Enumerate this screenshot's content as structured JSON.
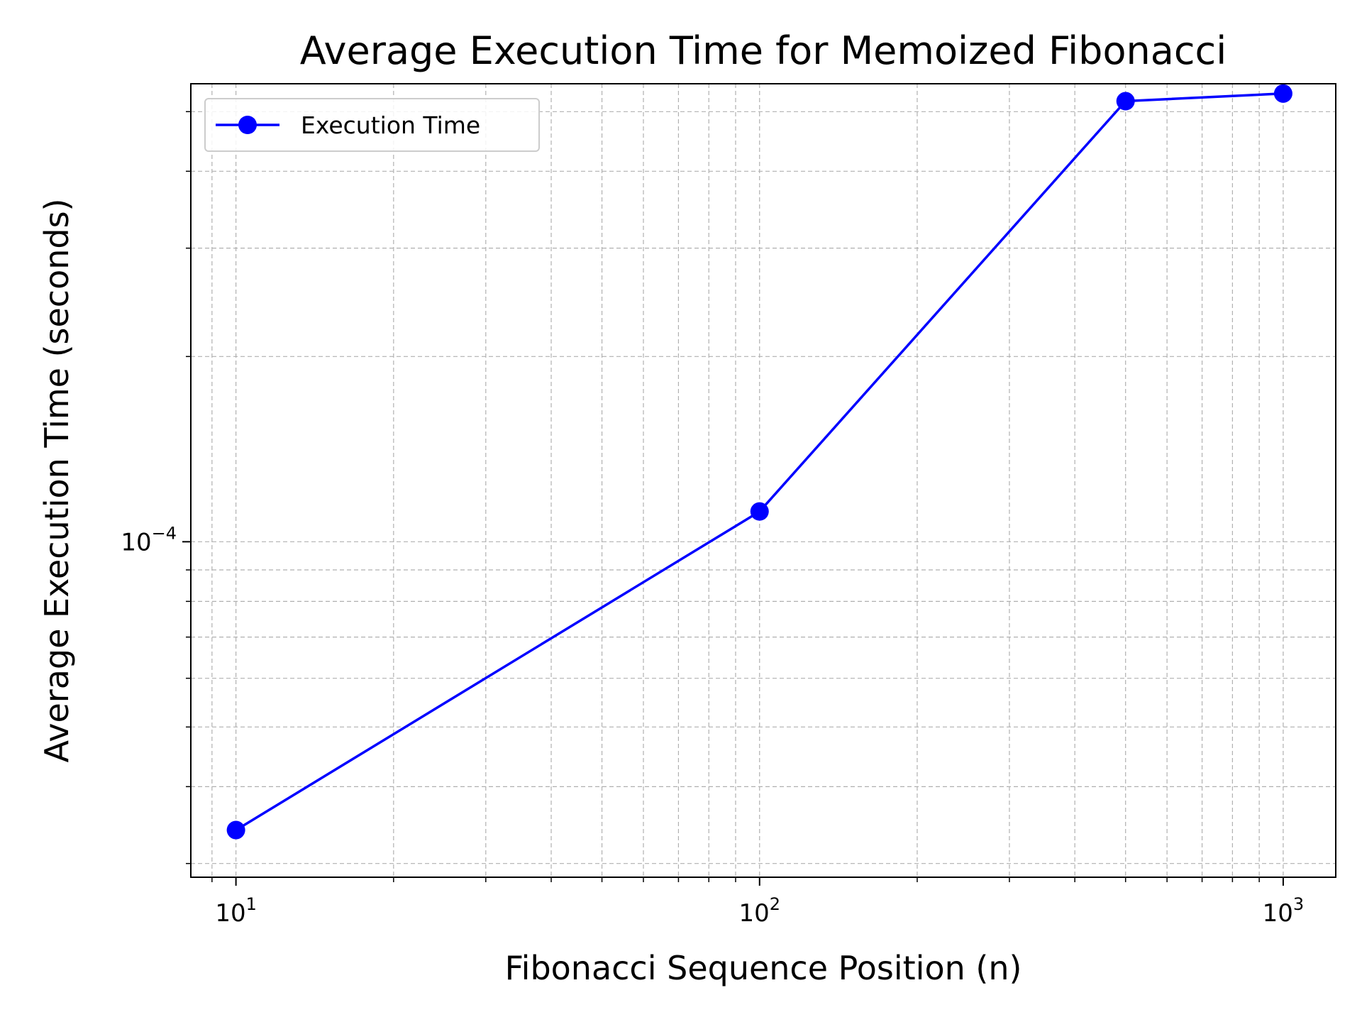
{
  "chart_data": {
    "type": "line",
    "title": "Average Execution Time for Memoized Fibonacci",
    "xlabel": "Fibonacci Sequence Position (n)",
    "ylabel": "Average Execution Time (seconds)",
    "x_scale": "log",
    "y_scale": "log",
    "xlim": [
      8.2,
      1260
    ],
    "ylim": [
      2.85e-05,
      0.000555
    ],
    "x_ticks": [
      {
        "value": 10,
        "base": "10",
        "exp": "1"
      },
      {
        "value": 100,
        "base": "10",
        "exp": "2"
      },
      {
        "value": 1000,
        "base": "10",
        "exp": "3"
      }
    ],
    "y_ticks": [
      {
        "value": 0.0001,
        "base": "10",
        "exp": "−4"
      }
    ],
    "grid": true,
    "legend_position": "top-left",
    "series": [
      {
        "name": "Execution Time",
        "color": "#0000ff",
        "marker": "circle",
        "x": [
          10,
          100,
          500,
          1000
        ],
        "y": [
          3.4e-05,
          0.000112,
          0.00052,
          0.000535
        ]
      }
    ]
  }
}
